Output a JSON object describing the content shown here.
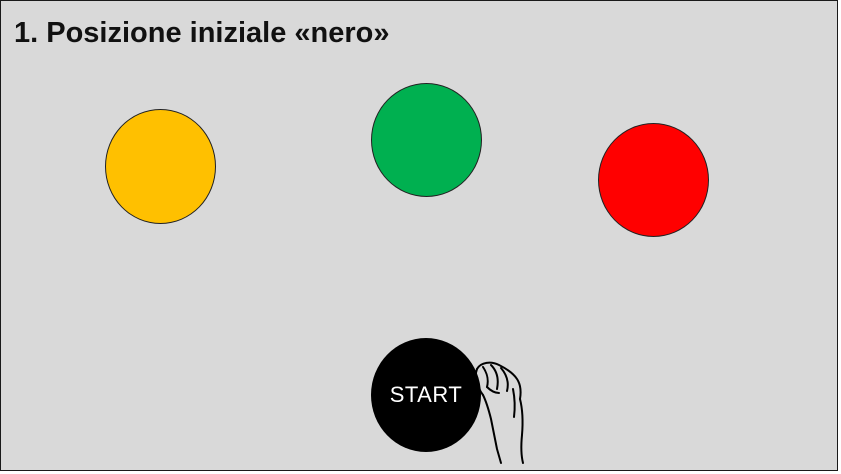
{
  "title": "1. Posizione iniziale «nero»",
  "targets": [
    {
      "color_name": "yellow",
      "color": "#ffc000"
    },
    {
      "color_name": "green",
      "color": "#00b050"
    },
    {
      "color_name": "red",
      "color": "#ff0000"
    }
  ],
  "start_button": {
    "label": "START",
    "color": "#000000"
  },
  "hand_icon": "hand-icon",
  "background_color": "#d9d9d9"
}
